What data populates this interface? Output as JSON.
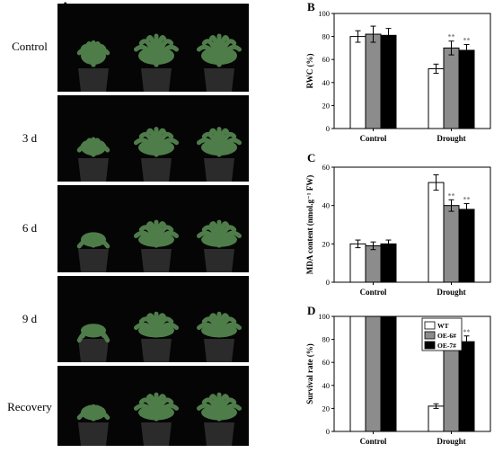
{
  "panel_a": {
    "letter": "A",
    "rows": [
      {
        "label": "Control"
      },
      {
        "label": "3 d"
      },
      {
        "label": "6 d"
      },
      {
        "label": "9 d"
      },
      {
        "label": "Recovery"
      }
    ]
  },
  "colors": {
    "wt": "#ffffff",
    "oe6": "#8c8c8c",
    "oe7": "#000000",
    "photo_bg": "#050505",
    "leaf": "#4f7d4a",
    "pot": "#2b2b2b"
  },
  "chart_data": [
    {
      "panel": "B",
      "type": "bar",
      "ylabel": "RWC (%)",
      "ylim": [
        0,
        100
      ],
      "yticks": [
        0,
        20,
        40,
        60,
        80,
        100
      ],
      "categories": [
        "Control",
        "Drought"
      ],
      "series": [
        {
          "key": "wt",
          "values": [
            80,
            52
          ],
          "errors": [
            5,
            4
          ]
        },
        {
          "key": "oe6",
          "values": [
            82,
            70
          ],
          "errors": [
            7,
            6
          ]
        },
        {
          "key": "oe7",
          "values": [
            81,
            68
          ],
          "errors": [
            6,
            5
          ]
        }
      ],
      "annotations": [
        {
          "category": 1,
          "series": 1,
          "text": "**"
        },
        {
          "category": 1,
          "series": 2,
          "text": "**"
        }
      ]
    },
    {
      "panel": "C",
      "type": "bar",
      "ylabel": "MDA content (nmol.g⁻¹ FW)",
      "ylim": [
        0,
        60
      ],
      "yticks": [
        0,
        20,
        40,
        60
      ],
      "categories": [
        "Control",
        "Drought"
      ],
      "series": [
        {
          "key": "wt",
          "values": [
            20,
            52
          ],
          "errors": [
            2,
            4
          ]
        },
        {
          "key": "oe6",
          "values": [
            19,
            40
          ],
          "errors": [
            2,
            3
          ]
        },
        {
          "key": "oe7",
          "values": [
            20,
            38
          ],
          "errors": [
            2,
            3
          ]
        }
      ],
      "annotations": [
        {
          "category": 1,
          "series": 1,
          "text": "**"
        },
        {
          "category": 1,
          "series": 2,
          "text": "**"
        }
      ]
    },
    {
      "panel": "D",
      "type": "bar",
      "ylabel": "Survival rate (%)",
      "ylim": [
        0,
        100
      ],
      "yticks": [
        0,
        20,
        40,
        60,
        80,
        100
      ],
      "categories": [
        "Control",
        "Drought"
      ],
      "series": [
        {
          "key": "wt",
          "name": "WT",
          "values": [
            100,
            22
          ],
          "errors": [
            0,
            2
          ]
        },
        {
          "key": "oe6",
          "name": "OE-6#",
          "values": [
            100,
            80
          ],
          "errors": [
            0,
            5
          ]
        },
        {
          "key": "oe7",
          "name": "OE-7#",
          "values": [
            100,
            78
          ],
          "errors": [
            0,
            5
          ]
        }
      ],
      "legend": "top-right",
      "annotations": [
        {
          "category": 1,
          "series": 1,
          "text": "**"
        },
        {
          "category": 1,
          "series": 2,
          "text": "**"
        }
      ]
    }
  ]
}
